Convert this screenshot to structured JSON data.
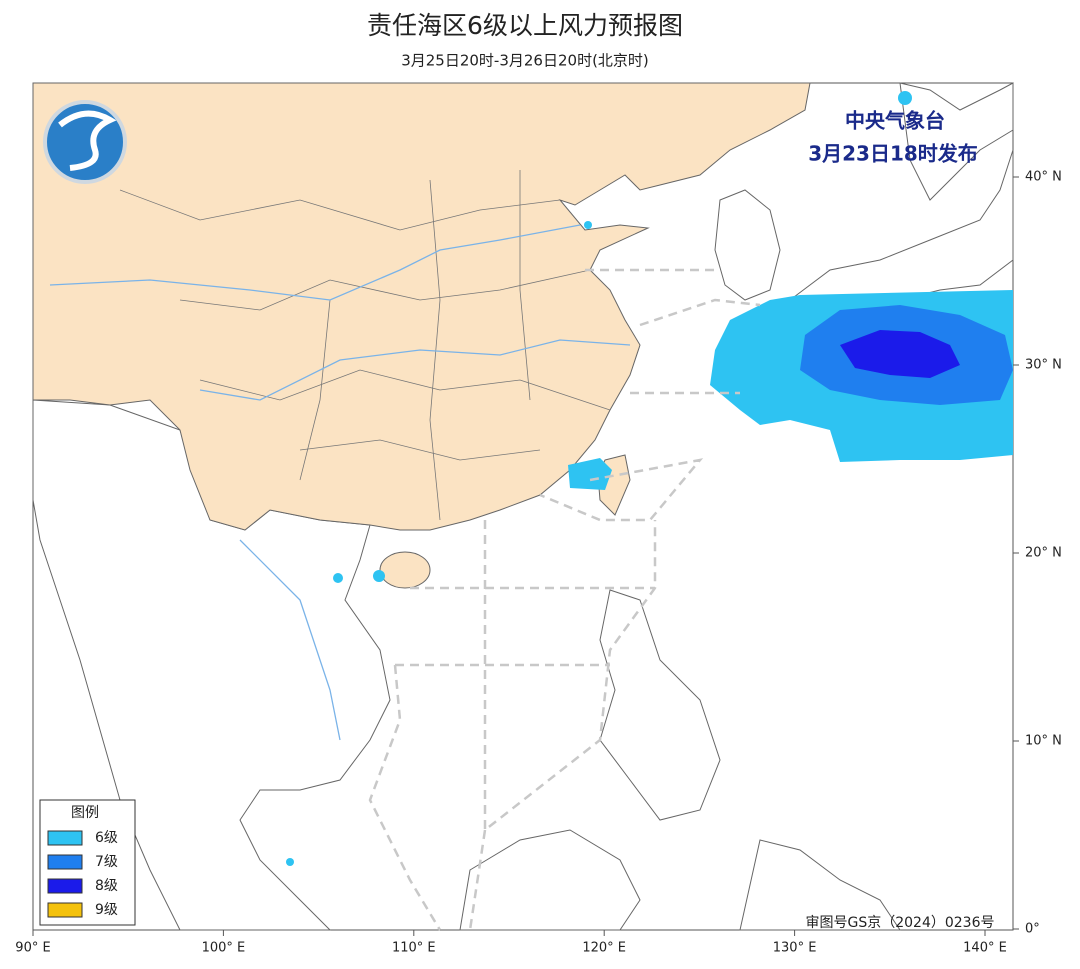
{
  "header": {
    "title": "责任海区6级以上风力预报图",
    "subtitle": "3月25日20时-3月26日20时(北京时)"
  },
  "issuer": {
    "name": "中央气象台",
    "time": "3月23日18时发布"
  },
  "legend": {
    "title": "图例",
    "items": [
      {
        "label": "6级",
        "color": "#2ec3f2"
      },
      {
        "label": "7级",
        "color": "#1f7fef"
      },
      {
        "label": "8级",
        "color": "#1b1bea"
      },
      {
        "label": "9级",
        "color": "#f4c20d"
      }
    ]
  },
  "axes": {
    "lat_labels": [
      "40° N",
      "30° N",
      "20° N",
      "10° N",
      "0°"
    ],
    "lon_labels": [
      "90° E",
      "100° E",
      "110° E",
      "120° E",
      "130° E",
      "140° E"
    ]
  },
  "footer": {
    "approval": "审图号GS京（2024）0236号"
  }
}
